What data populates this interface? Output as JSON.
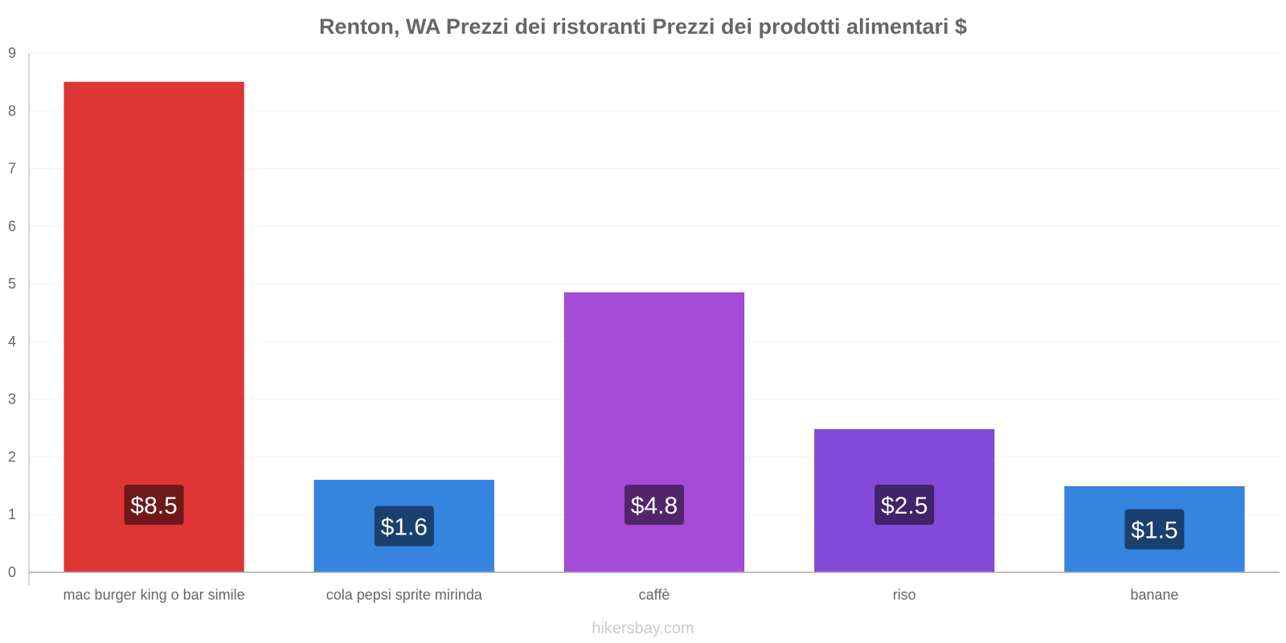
{
  "chart_data": {
    "type": "bar",
    "title": "Renton, WA Prezzi dei ristoranti Prezzi dei prodotti alimentari $",
    "categories": [
      "mac burger king o bar simile",
      "cola pepsi sprite mirinda",
      "caffè",
      "riso",
      "banane"
    ],
    "values": [
      8.5,
      1.6,
      4.85,
      2.48,
      1.49
    ],
    "data_labels": [
      "$8.5",
      "$1.6",
      "$4.8",
      "$2.5",
      "$1.5"
    ],
    "colors": [
      "#e03535",
      "#3584e0",
      "#a64ad9",
      "#8349d9",
      "#3584e0"
    ],
    "label_colors": [
      "#6e1a1a",
      "#1a406e",
      "#52256b",
      "#41236b",
      "#1a406e"
    ],
    "ylim": [
      0,
      9
    ],
    "yticks": [
      0,
      1,
      2,
      3,
      4,
      5,
      6,
      7,
      8,
      9
    ],
    "xlabel": "",
    "ylabel": "",
    "grid": true
  },
  "footer": {
    "credit": "hikersbay.com"
  }
}
